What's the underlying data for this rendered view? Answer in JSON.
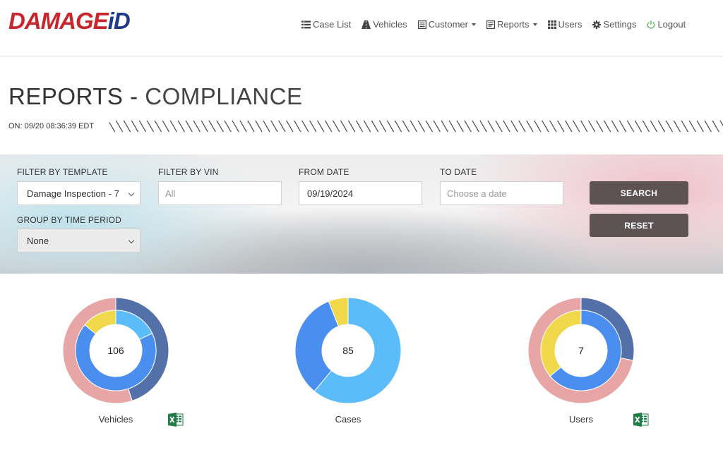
{
  "brand": {
    "logo_part1": "DAMAGE",
    "logo_part2": "iD"
  },
  "nav": {
    "items": [
      {
        "label": "Case List",
        "icon": "list-icon"
      },
      {
        "label": "Vehicles",
        "icon": "road-icon"
      },
      {
        "label": "Customer",
        "icon": "document-icon",
        "dropdown": true
      },
      {
        "label": "Reports",
        "icon": "report-icon",
        "dropdown": true
      },
      {
        "label": "Users",
        "icon": "grid-icon"
      },
      {
        "label": "Settings",
        "icon": "gear-icon"
      },
      {
        "label": "Logout",
        "icon": "power-icon"
      }
    ]
  },
  "page": {
    "title_main": "REPORTS - ",
    "title_sub": "COMPLIANCE",
    "timestamp": "ON: 09/20 08:36:39 EDT"
  },
  "filters": {
    "template": {
      "label": "FILTER BY TEMPLATE",
      "value": "Damage Inspection - 7"
    },
    "vin": {
      "label": "FILTER BY VIN",
      "placeholder": "All"
    },
    "from_date": {
      "label": "FROM DATE",
      "value": "09/19/2024"
    },
    "to_date": {
      "label": "TO DATE",
      "placeholder": "Choose a date"
    },
    "group_by": {
      "label": "GROUP BY TIME PERIOD",
      "value": "None"
    },
    "search_label": "SEARCH",
    "reset_label": "RESET"
  },
  "colors": {
    "dark_blue": "#5470a8",
    "medium_blue": "#4a8ff0",
    "light_blue": "#5bbcf9",
    "yellow": "#f0d84a",
    "pink": "#e8a5a6",
    "excel_green": "#1e7e45"
  },
  "charts": [
    {
      "label": "Vehicles",
      "center": "106",
      "export_icon": "excel-icon",
      "outer": [
        {
          "frac": 0.45,
          "color": "#5470a8"
        },
        {
          "frac": 0.55,
          "color": "#e8a5a6"
        }
      ],
      "inner": [
        {
          "frac": 0.18,
          "color": "#5bbcf9"
        },
        {
          "frac": 0.68,
          "color": "#4a8ff0"
        },
        {
          "frac": 0.14,
          "color": "#f0d84a"
        }
      ]
    },
    {
      "label": "Cases",
      "center": "85",
      "outer": [
        {
          "frac": 0.61,
          "color": "#5bbcf9"
        },
        {
          "frac": 0.33,
          "color": "#4a8ff0"
        },
        {
          "frac": 0.06,
          "color": "#f0d84a"
        }
      ]
    },
    {
      "label": "Users",
      "center": "7",
      "export_icon": "excel-icon",
      "outer": [
        {
          "frac": 0.28,
          "color": "#5470a8"
        },
        {
          "frac": 0.72,
          "color": "#e8a5a6"
        }
      ],
      "inner": [
        {
          "frac": 0.64,
          "color": "#4a8ff0"
        },
        {
          "frac": 0.36,
          "color": "#f0d84a"
        }
      ]
    }
  ]
}
